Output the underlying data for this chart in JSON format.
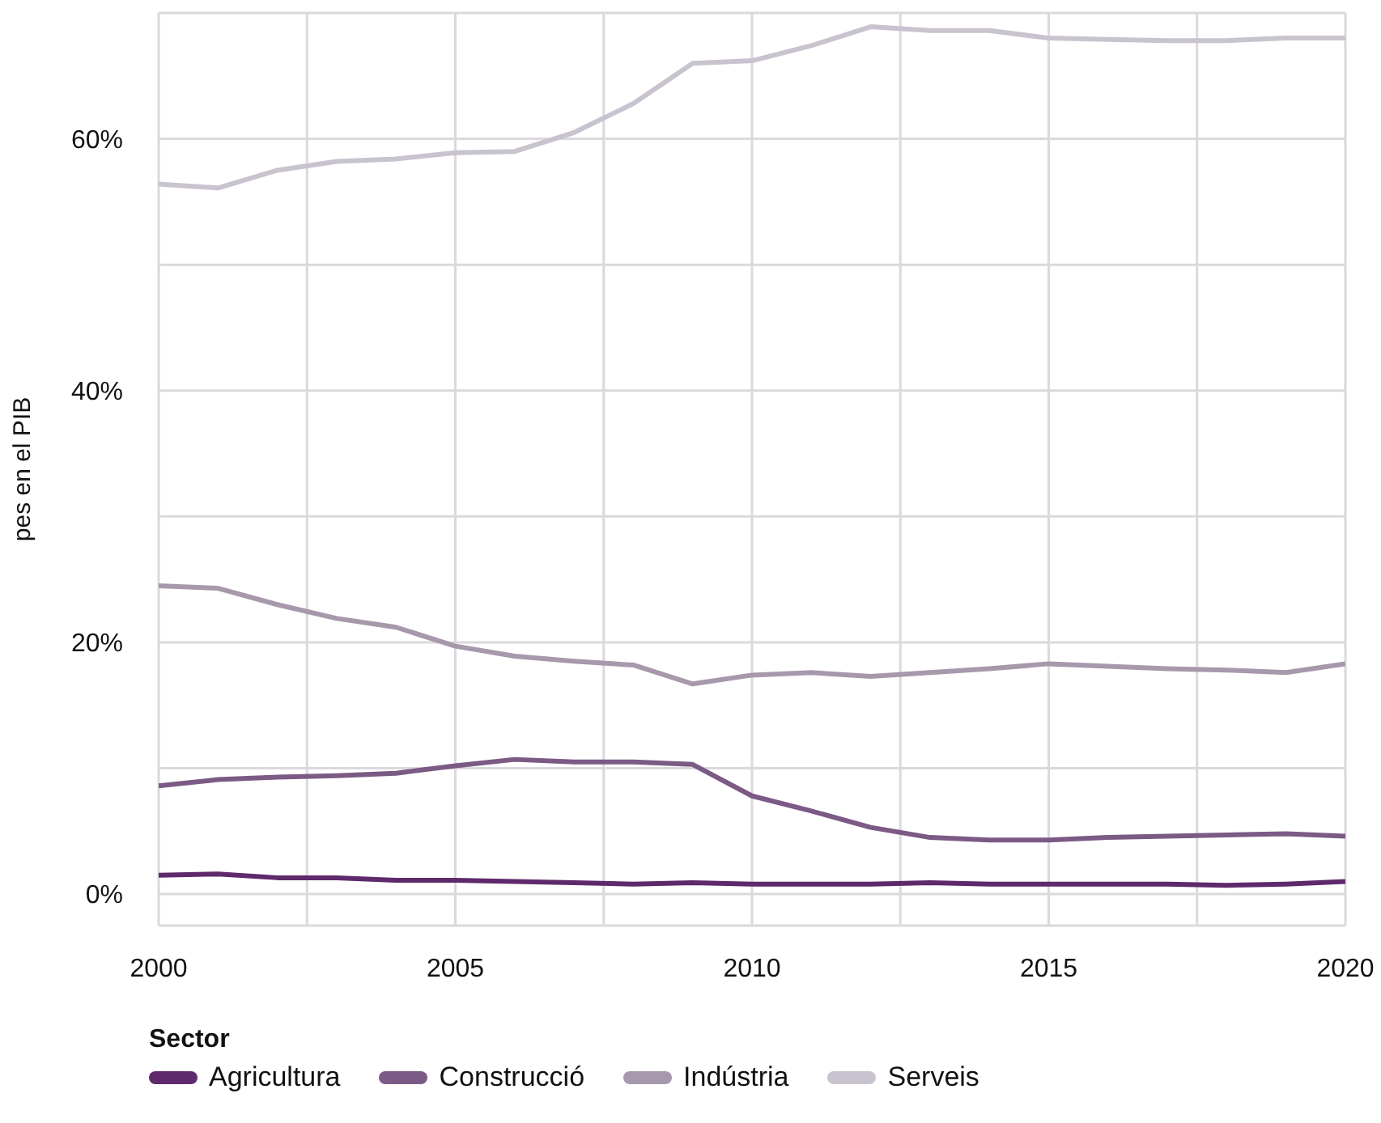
{
  "chart_data": {
    "type": "line",
    "ylabel": "pes en el PIB",
    "legend_title": "Sector",
    "legend": "bottom",
    "grid": true,
    "marker": "none",
    "line_style": "solid",
    "x": [
      2000,
      2001,
      2002,
      2003,
      2004,
      2005,
      2006,
      2007,
      2008,
      2009,
      2010,
      2011,
      2012,
      2013,
      2014,
      2015,
      2016,
      2017,
      2018,
      2019,
      2020
    ],
    "xlim": [
      2000,
      2020
    ],
    "xticks": [
      2000,
      {
        "value": 2002.5,
        "label": null
      },
      2005,
      {
        "value": 2007.5,
        "label": null
      },
      2010,
      {
        "value": 2012.5,
        "label": null
      },
      2015,
      {
        "value": 2017.5,
        "label": null
      },
      2020
    ],
    "ylim": [
      -2.5,
      70
    ],
    "yticks": [
      {
        "value": 0,
        "label": "0%"
      },
      {
        "value": 10,
        "label": null
      },
      {
        "value": 20,
        "label": "20%"
      },
      {
        "value": 30,
        "label": null
      },
      {
        "value": 40,
        "label": "40%"
      },
      {
        "value": 50,
        "label": null
      },
      {
        "value": 60,
        "label": "60%"
      },
      {
        "value": 70,
        "label": null
      }
    ],
    "series": [
      {
        "name": "Agricultura",
        "color": "#5e2a6b",
        "values": [
          1.5,
          1.6,
          1.3,
          1.3,
          1.1,
          1.1,
          1.0,
          0.9,
          0.8,
          0.9,
          0.8,
          0.8,
          0.8,
          0.9,
          0.8,
          0.8,
          0.8,
          0.8,
          0.7,
          0.8,
          1.0
        ]
      },
      {
        "name": "Construcció",
        "color": "#7b5a85",
        "values": [
          8.6,
          9.1,
          9.3,
          9.4,
          9.6,
          10.2,
          10.7,
          10.5,
          10.5,
          10.3,
          7.8,
          6.6,
          5.3,
          4.5,
          4.3,
          4.3,
          4.5,
          4.6,
          4.7,
          4.8,
          4.6
        ]
      },
      {
        "name": "Indústria",
        "color": "#a898ac",
        "values": [
          24.5,
          24.3,
          23.0,
          21.9,
          21.2,
          19.7,
          18.9,
          18.5,
          18.2,
          16.7,
          17.4,
          17.6,
          17.3,
          17.6,
          17.9,
          18.3,
          18.1,
          17.9,
          17.8,
          17.6,
          18.3
        ]
      },
      {
        "name": "Serveis",
        "color": "#c9c3cf",
        "values": [
          56.4,
          56.1,
          57.5,
          58.2,
          58.4,
          58.9,
          59.0,
          60.5,
          62.8,
          66.0,
          66.2,
          67.4,
          68.9,
          68.6,
          68.6,
          68.0,
          67.9,
          67.8,
          67.8,
          68.0,
          68.0
        ]
      }
    ]
  }
}
